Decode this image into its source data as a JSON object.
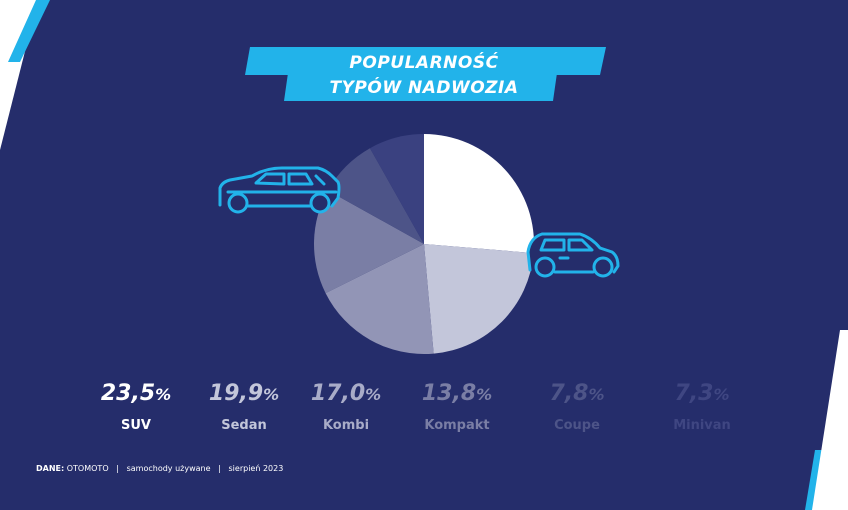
{
  "title": {
    "line1": "POPULARNOŚĆ",
    "line2": "TYPÓW NADWOZIA"
  },
  "colors": {
    "background": "#252d6b",
    "accent": "#22b3ea",
    "segment_1": "#ffffff",
    "segment_2": "#c3c6da",
    "segment_3": "#9295b6",
    "segment_4": "#7a7ea5",
    "segment_5": "#4d5488",
    "segment_6": "#3a4180"
  },
  "icons": [
    "suv-car-icon",
    "hatchback-car-icon"
  ],
  "chart_data": {
    "type": "pie",
    "categories": [
      "SUV",
      "Sedan",
      "Kombi",
      "Kompakt",
      "Coupe",
      "Minivan"
    ],
    "values": [
      23.5,
      19.9,
      17.0,
      13.8,
      7.8,
      7.3
    ],
    "value_labels": [
      "23,5",
      "19,9",
      "17,0",
      "13,8",
      "7,8",
      "7,3"
    ],
    "unit": "%",
    "legend": "bottom",
    "start_angle_deg": 0,
    "direction": "clockwise"
  },
  "footer": {
    "source_label": "DANE:",
    "source": "OTOMOTO",
    "separator": "|",
    "segment": "samochody używane",
    "date": "sierpień 2023"
  }
}
